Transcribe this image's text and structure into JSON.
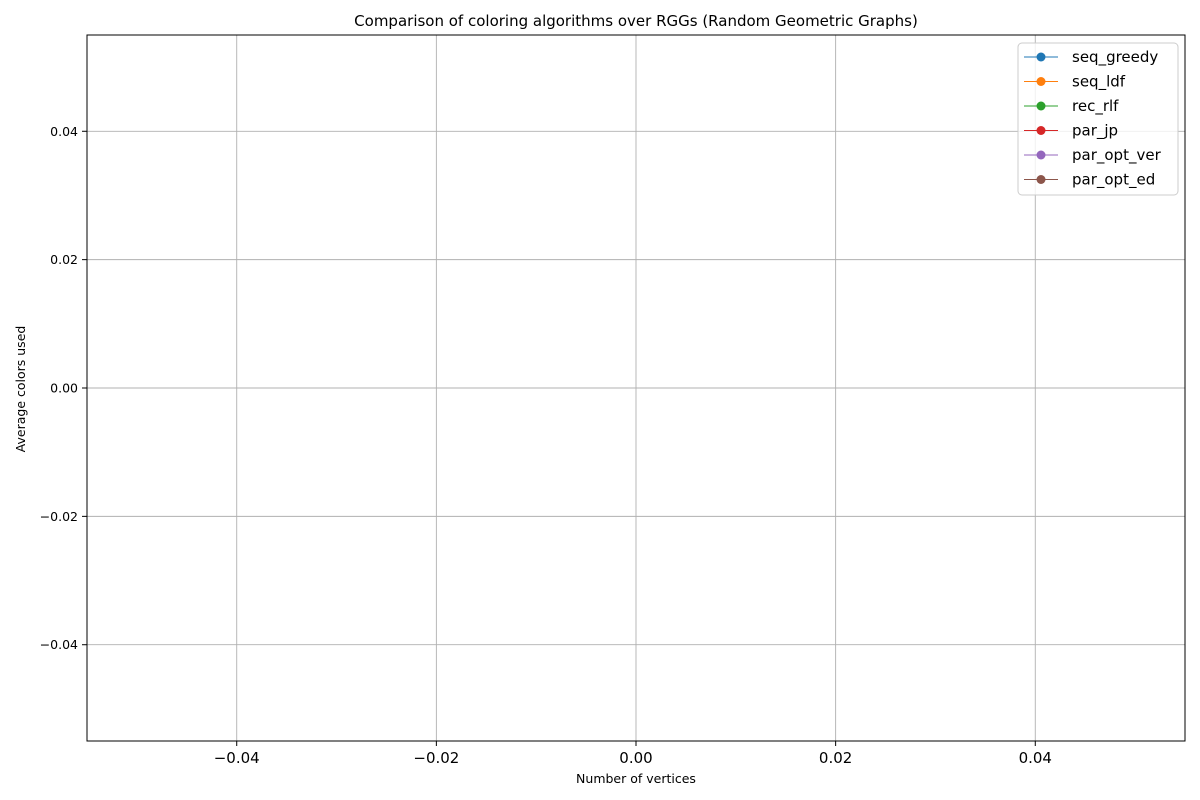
{
  "chart_data": {
    "type": "line",
    "title": "Comparison of coloring algorithms over RGGs (Random Geometric Graphs)",
    "xlabel": "Number of vertices",
    "ylabel": "Average colors used",
    "xlim": [
      -0.055,
      0.055
    ],
    "ylim": [
      -0.055,
      0.055
    ],
    "xticks": [
      -0.04,
      -0.02,
      0.0,
      0.02,
      0.04
    ],
    "xtick_labels": [
      "−0.04",
      "−0.02",
      "0.00",
      "0.02",
      "0.04"
    ],
    "yticks": [
      -0.04,
      -0.02,
      0.0,
      0.02,
      0.04
    ],
    "ytick_labels": [
      "−0.04",
      "−0.02",
      "0.00",
      "0.02",
      "0.04"
    ],
    "grid": true,
    "legend_position": "top-right",
    "series": [
      {
        "name": "seq_greedy",
        "color": "#1f77b4",
        "marker": "circle",
        "x": [],
        "y": []
      },
      {
        "name": "seq_ldf",
        "color": "#ff7f0e",
        "marker": "circle",
        "x": [],
        "y": []
      },
      {
        "name": "rec_rlf",
        "color": "#2ca02c",
        "marker": "circle",
        "x": [],
        "y": []
      },
      {
        "name": "par_jp",
        "color": "#d62728",
        "marker": "circle",
        "x": [],
        "y": []
      },
      {
        "name": "par_opt_ver",
        "color": "#9467bd",
        "marker": "circle",
        "x": [],
        "y": []
      },
      {
        "name": "par_opt_ed",
        "color": "#8c564b",
        "marker": "circle",
        "x": [],
        "y": []
      }
    ]
  }
}
